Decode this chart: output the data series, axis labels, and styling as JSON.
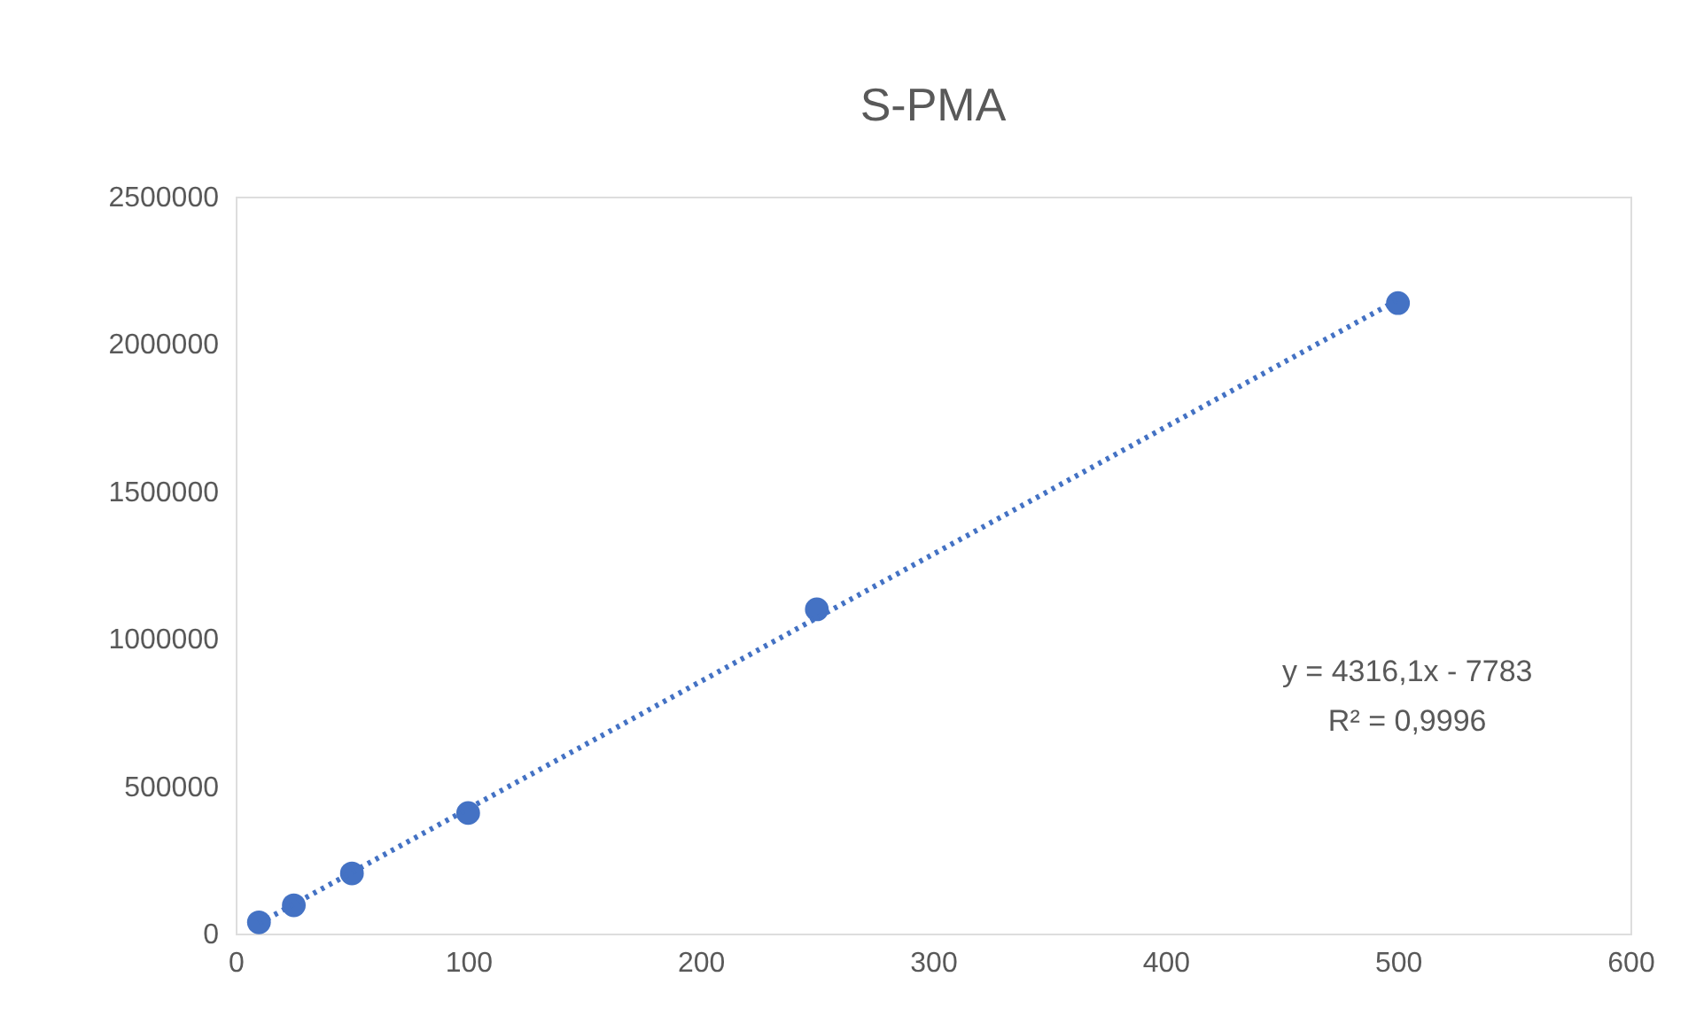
{
  "chart_data": {
    "type": "scatter",
    "title": "S-PMA",
    "series": [
      {
        "color": "#4472c4",
        "marker": "circle",
        "x": [
          10,
          25,
          50,
          100,
          250,
          500
        ],
        "values": [
          38000,
          96000,
          204000,
          409000,
          1100000,
          2139000
        ]
      },
      {
        "type": "line",
        "color": "#4472c4",
        "line_style": "dotted",
        "marker": "none",
        "x": [
          10,
          500
        ],
        "values": [
          35000,
          2150000
        ]
      }
    ],
    "xlim": [
      0,
      600
    ],
    "xticks": [
      0,
      100,
      200,
      300,
      400,
      500,
      600
    ],
    "ylim": [
      0,
      2500000
    ],
    "yticks": [
      0,
      500000,
      1000000,
      1500000,
      2000000,
      2500000
    ],
    "grid": false,
    "legend": false,
    "annotations": [
      "y = 4316,1x - 7783",
      "R² = 0,9996"
    ]
  }
}
